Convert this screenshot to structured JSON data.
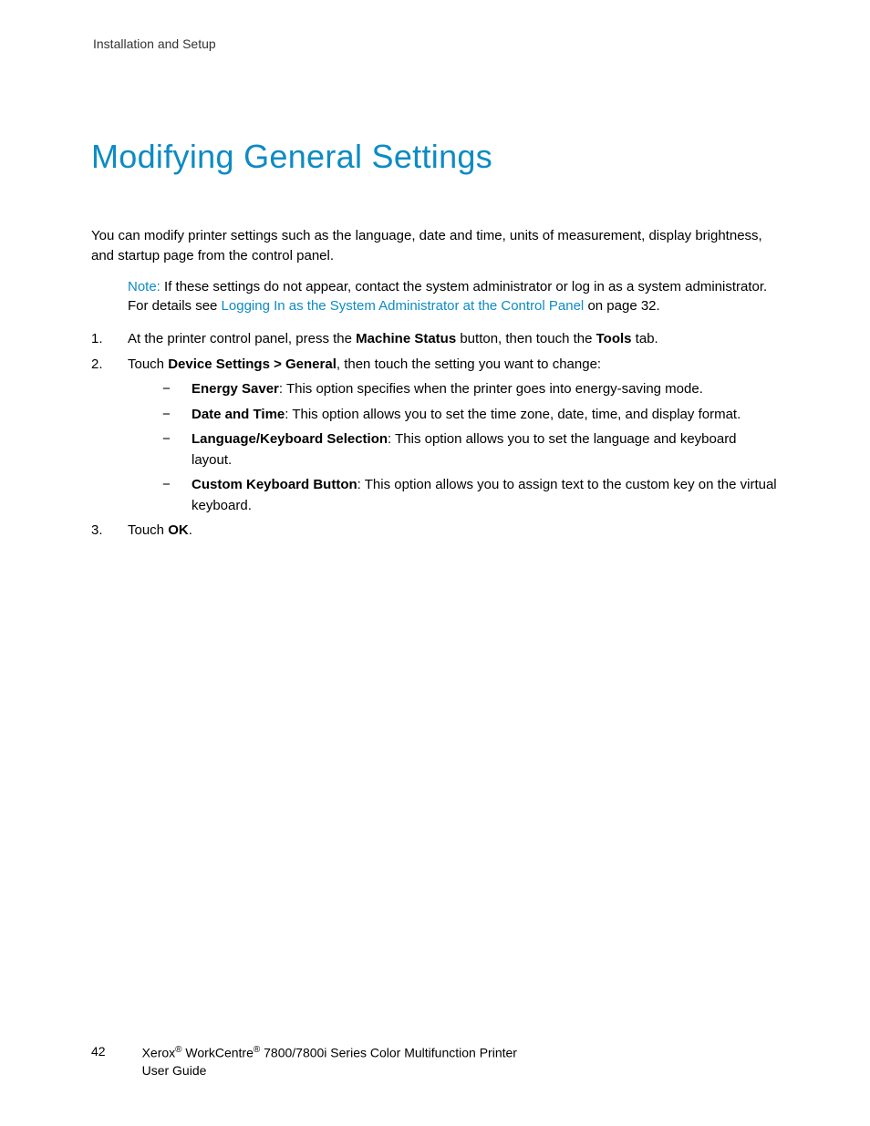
{
  "header": {
    "section_title": "Installation and Setup"
  },
  "heading": {
    "title": "Modifying General Settings"
  },
  "intro": {
    "text": "You can modify printer settings such as the language, date and time, units of measurement, display brightness, and startup page from the control panel."
  },
  "note": {
    "label": "Note:",
    "text_before": " If these settings do not appear, contact the system administrator or log in as a system administrator. For details see ",
    "link_text": "Logging In as the System Administrator at the Control Panel",
    "text_after": " on page 32."
  },
  "steps": {
    "item1": {
      "marker": "1.",
      "text_before": "At the printer control panel, press the ",
      "bold1": "Machine Status",
      "text_mid": " button, then touch the ",
      "bold2": "Tools",
      "text_after": " tab."
    },
    "item2": {
      "marker": "2.",
      "text_before": "Touch ",
      "bold1": "Device Settings > General",
      "text_after": ", then touch the setting you want to change:"
    },
    "sub": {
      "dash": "−",
      "a": {
        "bold": "Energy Saver",
        "text": ": This option specifies when the printer goes into energy-saving mode."
      },
      "b": {
        "bold": "Date and Time",
        "text": ": This option allows you to set the time zone, date, time, and display format."
      },
      "c": {
        "bold": "Language/Keyboard Selection",
        "text": ": This option allows you to set the language and keyboard layout."
      },
      "d": {
        "bold": "Custom Keyboard Button",
        "text": ": This option allows you to assign text to the custom key on the virtual keyboard."
      }
    },
    "item3": {
      "marker": "3.",
      "text_before": "Touch ",
      "bold1": "OK",
      "text_after": "."
    }
  },
  "footer": {
    "page_number": "42",
    "brand1": "Xerox",
    "brand2": " WorkCentre",
    "model": " 7800/7800i Series Color Multifunction Printer",
    "guide": "User Guide",
    "reg": "®"
  },
  "colors": {
    "accent": "#0d8bc4",
    "text": "#000000",
    "background": "#ffffff"
  }
}
